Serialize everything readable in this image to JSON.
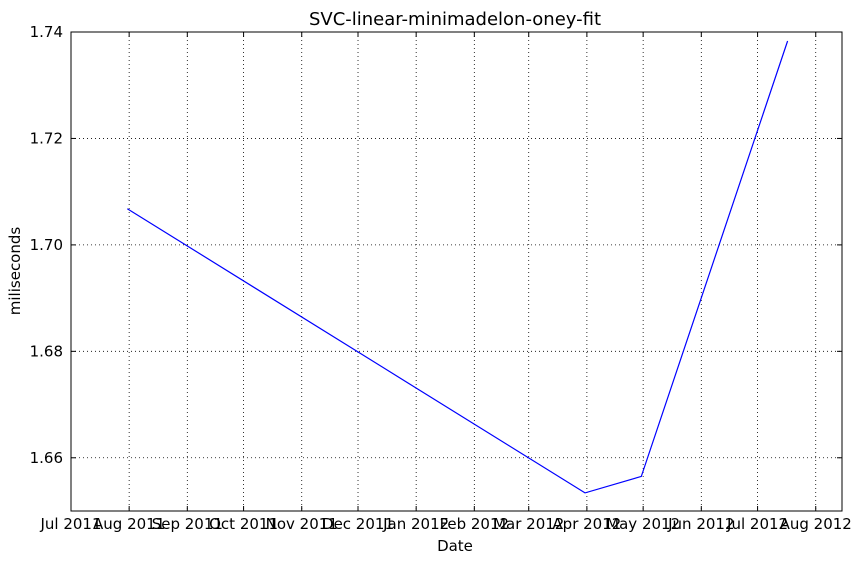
{
  "chart_data": {
    "type": "line",
    "title": "SVC-linear-minimadelon-oney-fit",
    "xlabel": "Date",
    "ylabel": "miliseconds",
    "xlim": [
      "2011-07-01",
      "2012-08-15"
    ],
    "ylim": [
      1.65,
      1.74
    ],
    "grid": true,
    "x_ticks": [
      "2011-07-01",
      "2011-08-01",
      "2011-09-01",
      "2011-10-01",
      "2011-11-01",
      "2011-12-01",
      "2012-01-01",
      "2012-02-01",
      "2012-03-01",
      "2012-04-01",
      "2012-05-01",
      "2012-06-01",
      "2012-07-01",
      "2012-08-01"
    ],
    "x_tick_labels": [
      "Jul 2011",
      "Aug 2011",
      "Sep 2011",
      "Oct 2011",
      "Nov 2011",
      "Dec 2011",
      "Jan 2012",
      "Feb 2012",
      "Mar 2012",
      "Apr 2012",
      "May 2012",
      "Jun 2012",
      "Jul 2012",
      "Aug 2012"
    ],
    "y_ticks": [
      1.66,
      1.68,
      1.7,
      1.72,
      1.74
    ],
    "y_tick_labels": [
      "1.66",
      "1.68",
      "1.70",
      "1.72",
      "1.74"
    ],
    "series": [
      {
        "color": "#0000ff",
        "x": [
          "2011-07-31",
          "2012-03-31",
          "2012-04-30",
          "2012-07-17"
        ],
        "y": [
          1.7068,
          1.6534,
          1.6565,
          1.7383
        ]
      }
    ]
  }
}
